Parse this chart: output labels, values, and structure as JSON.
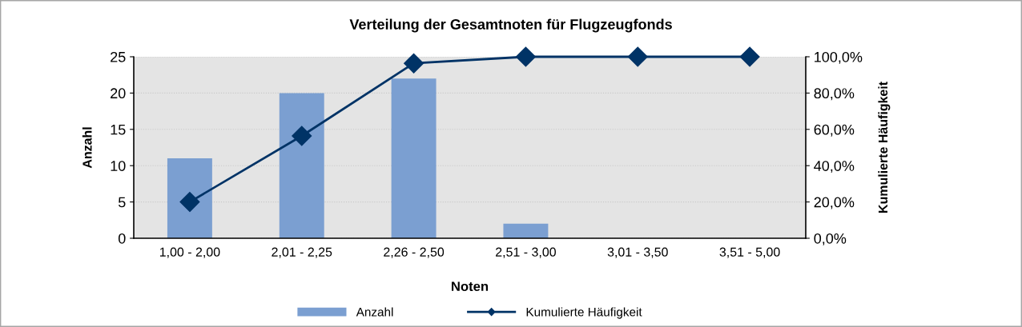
{
  "chart_data": {
    "type": "bar",
    "title": "Verteilung der Gesamtnoten für Flugzeugfonds",
    "xlabel": "Noten",
    "ylabel": "Anzahl",
    "y2label": "Kumulierte Häufigkeit",
    "categories": [
      "1,00 - 2,00",
      "2,01 - 2,25",
      "2,26 - 2,50",
      "2,51 - 3,00",
      "3,01 - 3,50",
      "3,51 - 5,00"
    ],
    "series": [
      {
        "name": "Anzahl",
        "color": "#7b9fd1",
        "values": [
          11,
          20,
          22,
          2,
          0,
          0
        ]
      },
      {
        "name": "Kumulierte Häufigkeit",
        "type": "line",
        "axis": "y2",
        "color": "#003366",
        "values": [
          20,
          56.4,
          96.4,
          100,
          100,
          100
        ]
      }
    ],
    "ylim": [
      0,
      25
    ],
    "yticks": [
      0,
      5,
      10,
      15,
      20,
      25
    ],
    "y2lim": [
      0,
      100
    ],
    "y2ticks": [
      {
        "value": 0,
        "label": "0,0%"
      },
      {
        "value": 20,
        "label": "20,0%"
      },
      {
        "value": 40,
        "label": "40,0%"
      },
      {
        "value": 60,
        "label": "60,0%"
      },
      {
        "value": 80,
        "label": "80,0%"
      },
      {
        "value": 100,
        "label": "100,0%"
      }
    ],
    "grid": true,
    "legend": "bottom",
    "marker": "diamond",
    "line_style": "solid"
  }
}
